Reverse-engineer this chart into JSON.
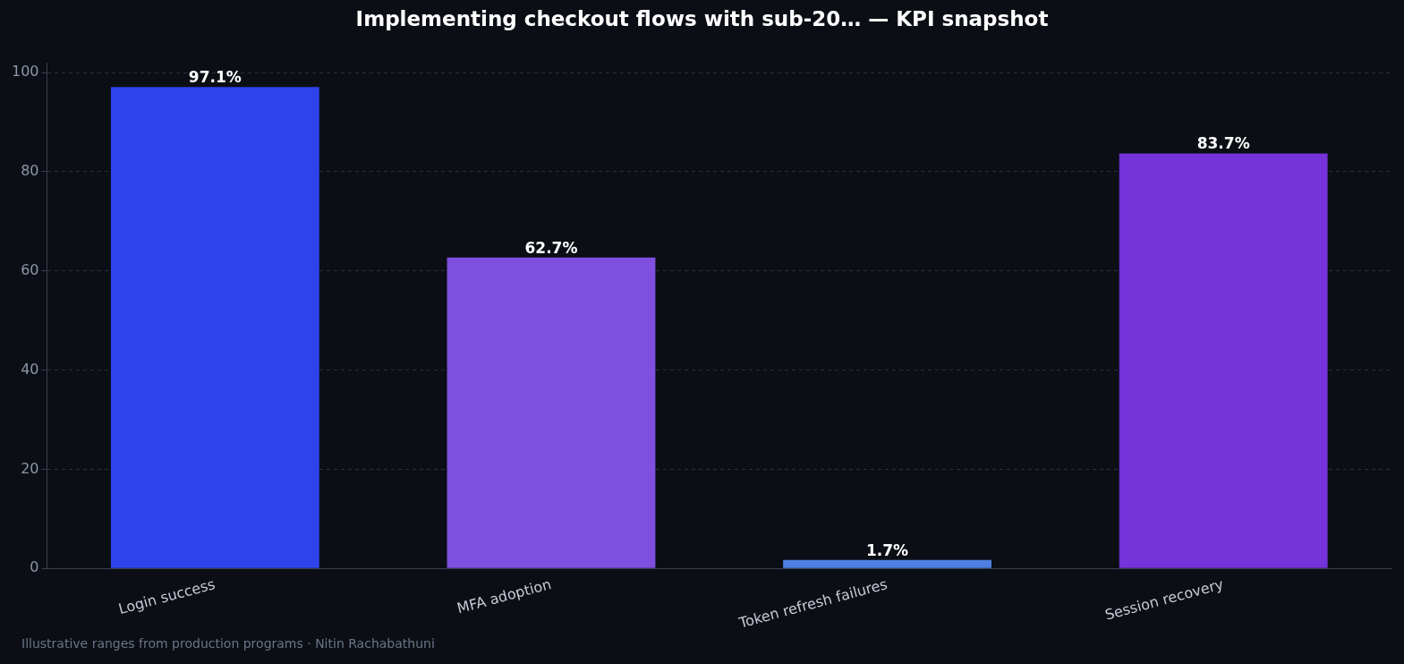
{
  "chart_data": {
    "type": "bar",
    "title": "Implementing checkout flows with sub-20… — KPI snapshot",
    "categories": [
      "Login success",
      "MFA adoption",
      "Token refresh failures",
      "Session recovery"
    ],
    "values": [
      97.1,
      62.7,
      1.7,
      83.7
    ],
    "colors": [
      "#2f43ec",
      "#7f4fdf",
      "#4f7fe0",
      "#7434d9"
    ],
    "value_labels": [
      "97.1%",
      "62.7%",
      "1.7%",
      "83.7%"
    ],
    "ylim": [
      0,
      102
    ],
    "yticks": [
      0,
      20,
      40,
      60,
      80,
      100
    ],
    "grid": "y",
    "legend": false,
    "annotations": [
      "Illustrative ranges from production programs · Nitin Rachabathuni"
    ]
  }
}
